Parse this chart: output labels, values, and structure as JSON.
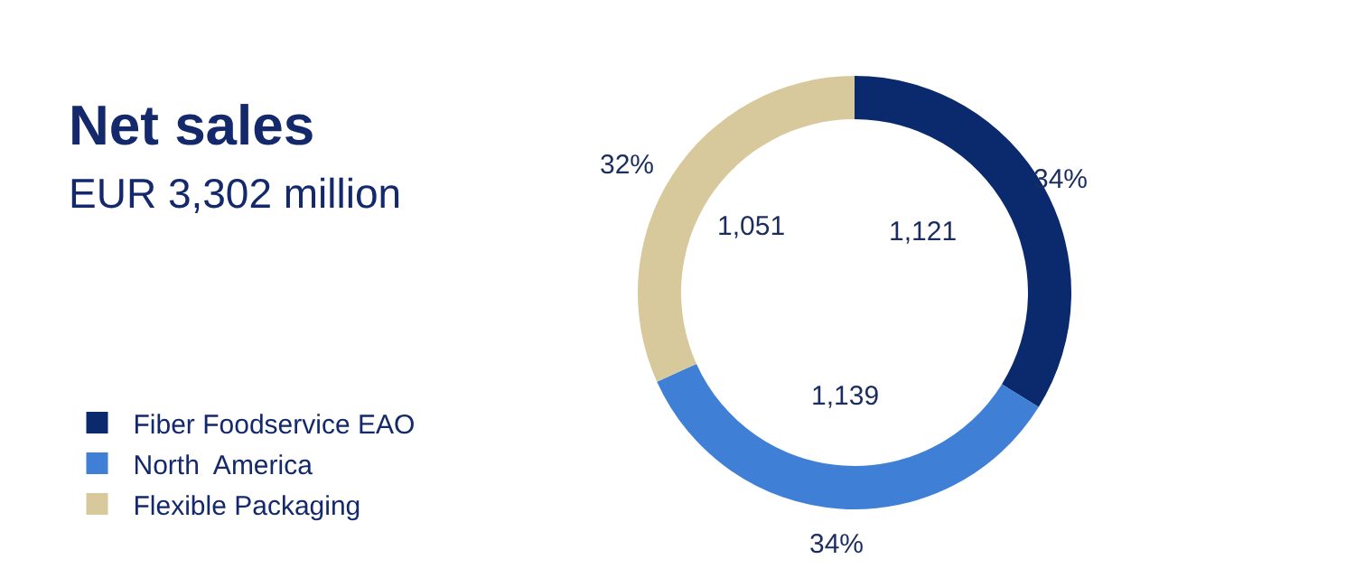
{
  "chart_data": {
    "type": "donut",
    "title": "Net sales",
    "subtitle": "EUR 3,302 million",
    "categories": [
      "Fiber Foodservice EAO",
      "North  America",
      "Flexible Packaging"
    ],
    "values": [
      1121,
      1139,
      1051
    ],
    "colors": [
      "#0b2a6e",
      "#3f80d6",
      "#d7c99c"
    ],
    "value_labels": [
      "1,121",
      "1,139",
      "1,051"
    ],
    "annotations": [
      {
        "text": "34%",
        "x": "Fiber Foodservice EAO"
      },
      {
        "text": "34%",
        "x": "North  America"
      },
      {
        "text": "32%",
        "x": "Flexible Packaging"
      }
    ],
    "legend": "bottom left"
  }
}
